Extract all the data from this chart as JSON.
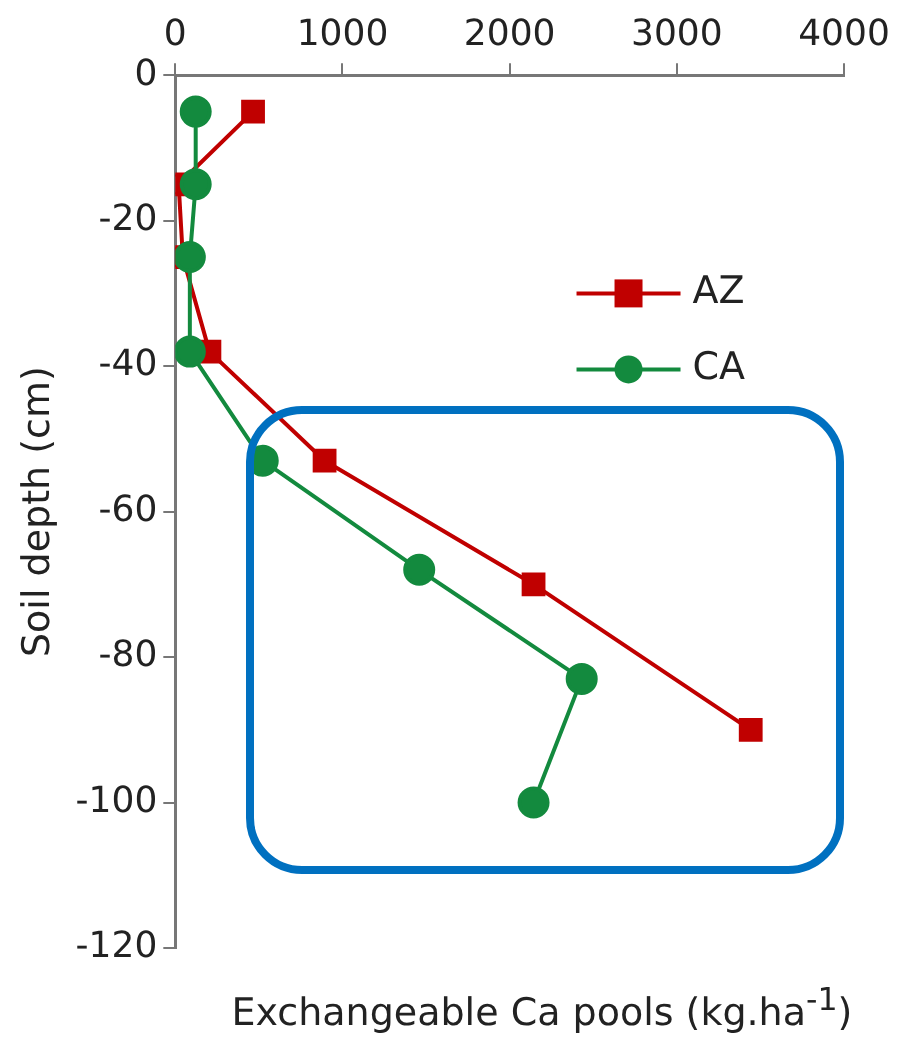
{
  "chart_data": {
    "type": "line",
    "xlabel": "Exchangeable Ca pools (kg.ha$^{-1}$)",
    "ylabel": "Soil depth (cm)",
    "xlim": [
      0,
      4000
    ],
    "xticks": [
      0,
      1000,
      2000,
      3000,
      4000
    ],
    "ylim": [
      -120,
      0
    ],
    "yticks": [
      0,
      -20,
      -40,
      -60,
      -80,
      -100,
      -120
    ],
    "grid": false,
    "legend": "top right",
    "series": [
      {
        "name": "AZ",
        "color": "#c00000",
        "marker": "square",
        "x": [
          465,
          20,
          45,
          204,
          893,
          2143,
          3442
        ],
        "values": [
          -5,
          -15,
          -25,
          -38,
          -53,
          -70,
          -90
        ]
      },
      {
        "name": "CA",
        "color": "#138a3e",
        "marker": "circle",
        "x": [
          122,
          122,
          87,
          87,
          523,
          1459,
          2431,
          2143
        ],
        "values": [
          -5,
          -15,
          -25,
          -38,
          -53,
          -68,
          -83,
          -100
        ]
      }
    ]
  }
}
